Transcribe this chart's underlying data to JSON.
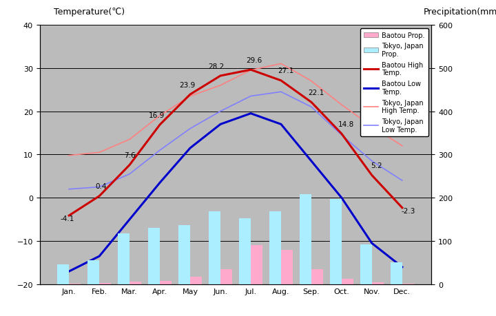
{
  "months": [
    "Jan.",
    "Feb.",
    "Mar.",
    "Apr.",
    "May",
    "Jun.",
    "Jul.",
    "Aug.",
    "Sep.",
    "Oct.",
    "Nov.",
    "Dec."
  ],
  "baotou_high": [
    -4.1,
    0.4,
    7.6,
    16.9,
    23.9,
    28.2,
    29.6,
    27.1,
    22.1,
    14.8,
    5.2,
    -2.3
  ],
  "baotou_low": [
    -17.0,
    -13.5,
    -5.0,
    3.5,
    11.5,
    17.0,
    19.5,
    17.0,
    8.5,
    0.0,
    -10.5,
    -16.0
  ],
  "tokyo_high": [
    9.8,
    10.5,
    13.5,
    19.0,
    23.5,
    26.0,
    29.5,
    31.0,
    27.0,
    21.5,
    16.5,
    12.0
  ],
  "tokyo_low": [
    2.0,
    2.5,
    5.5,
    11.0,
    16.0,
    20.0,
    23.5,
    24.5,
    21.0,
    14.5,
    8.5,
    4.0
  ],
  "baotou_precip": [
    2.0,
    3.0,
    6.0,
    8.0,
    18.0,
    35.0,
    90.0,
    80.0,
    35.0,
    12.0,
    4.0,
    2.0
  ],
  "tokyo_precip": [
    46.0,
    56.0,
    117.0,
    130.0,
    137.0,
    168.0,
    153.0,
    168.0,
    209.0,
    197.0,
    92.0,
    51.0
  ],
  "baotou_high_color": "#cc0000",
  "baotou_low_color": "#0000cc",
  "tokyo_high_color": "#ff8080",
  "tokyo_low_color": "#8080ff",
  "baotou_precip_color": "#ffaacc",
  "tokyo_precip_color": "#aaeeff",
  "bg_color": "#bbbbbb",
  "ylim_temp": [
    -20,
    40
  ],
  "ylim_precip": [
    0,
    600
  ],
  "title_left": "Temperature(℃)",
  "title_right": "Precipitation(mm)",
  "baotou_high_label": "Baotou High\nTemp.",
  "baotou_low_label": "Baotou Low\nTemp.",
  "tokyo_high_label": "Tokyo, Japan\nHigh Temp.",
  "tokyo_low_label": "Tokyo, Japan\nLow Temp.",
  "baotou_precip_label": "Baotou Prop.",
  "tokyo_precip_label": "Tokyo, Japan\nProp.",
  "ann_baotou_high": [
    "-4.1",
    "0.4",
    "7.6",
    "16.9",
    "23.9",
    "28.2",
    "29.6",
    "27.1",
    "22.1",
    "14.8",
    "5.2",
    "-2.3"
  ],
  "ann_offsets_x": [
    -0.05,
    0.05,
    0.0,
    -0.1,
    -0.1,
    -0.15,
    0.1,
    0.15,
    0.15,
    0.15,
    0.15,
    0.2
  ],
  "ann_offsets_y": [
    -1.5,
    1.5,
    1.5,
    1.5,
    1.5,
    1.5,
    1.5,
    1.5,
    1.5,
    1.5,
    1.5,
    -1.5
  ]
}
